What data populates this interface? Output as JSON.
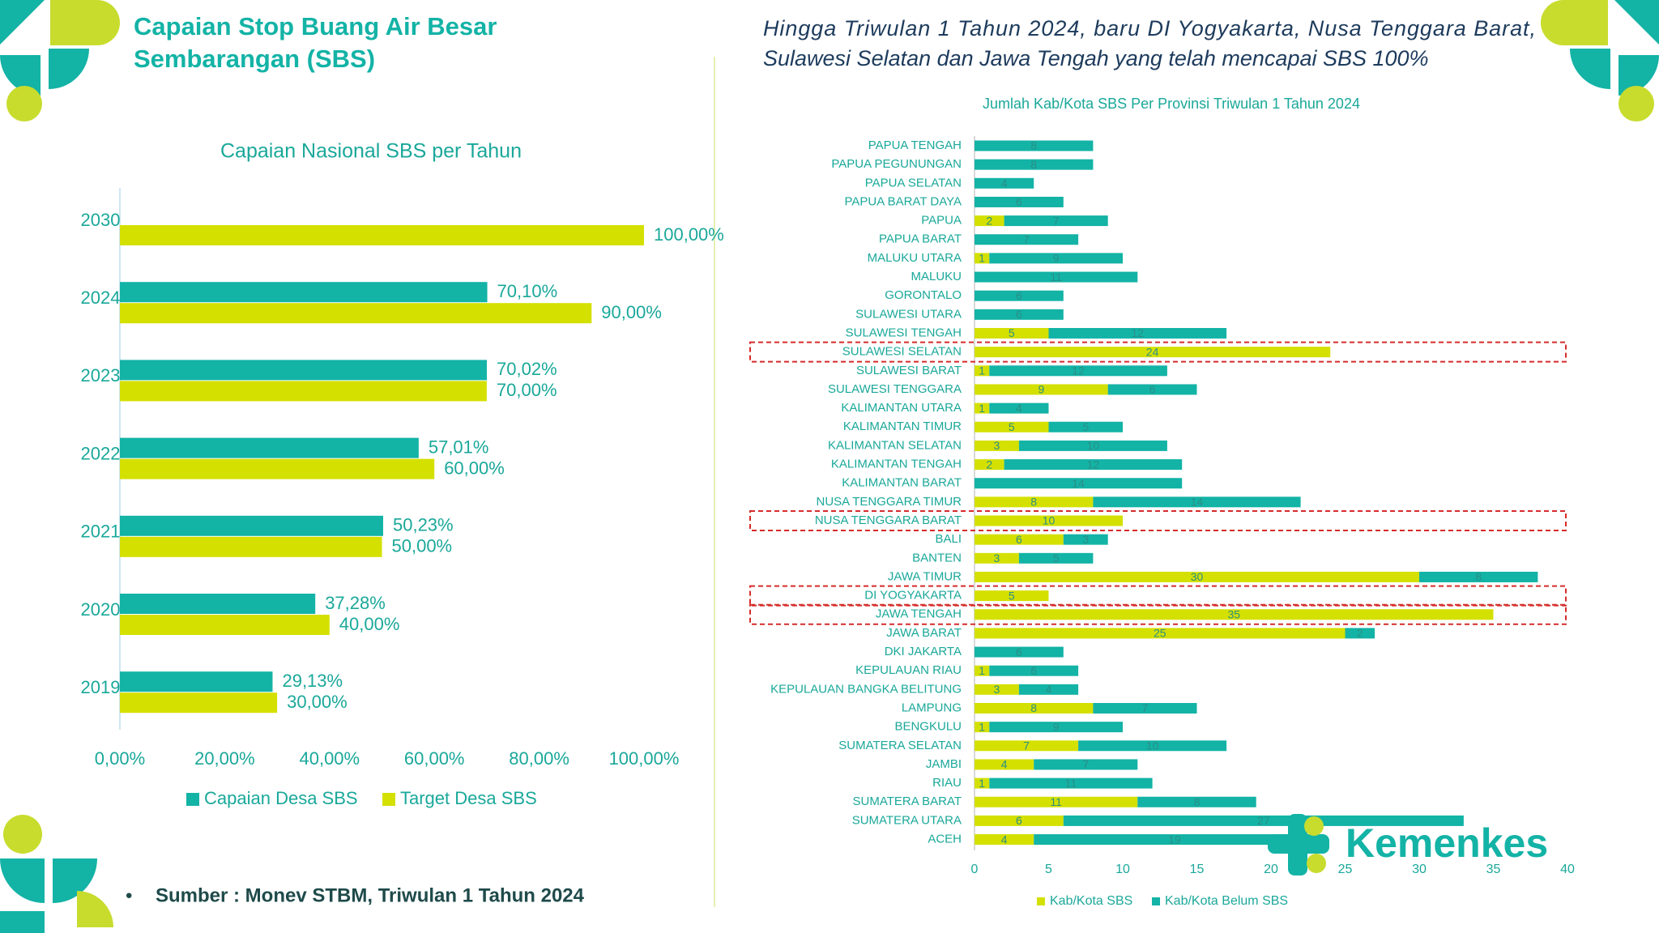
{
  "title_lines": [
    "Capaian Stop Buang Air Besar",
    "Sembarangan (SBS)"
  ],
  "headline_lines": [
    "Hingga Triwulan 1 Tahun 2024, baru DI Yogyakarta, Nusa Tenggara Barat,",
    "Sulawesi Selatan dan Jawa Tengah yang telah mencapai SBS 100%"
  ],
  "source": "Sumber : Monev STBM, Triwulan 1 Tahun 2024",
  "brand": "Kemenkes",
  "chart_data": [
    {
      "type": "bar",
      "orientation": "horizontal",
      "title": "Capaian Nasional SBS per Tahun",
      "categories": [
        "2030",
        "2024",
        "2023",
        "2022",
        "2021",
        "2020",
        "2019"
      ],
      "series": [
        {
          "name": "Capaian Desa SBS",
          "color": "#13b3a6",
          "values": [
            null,
            70.1,
            70.02,
            57.01,
            50.23,
            37.28,
            29.13
          ],
          "value_labels": [
            null,
            "70,10%",
            "70,02%",
            "57,01%",
            "50,23%",
            "37,28%",
            "29,13%"
          ]
        },
        {
          "name": "Target Desa SBS",
          "color": "#d4e000",
          "values": [
            100,
            90,
            70,
            60,
            50,
            40,
            30
          ],
          "value_labels": [
            "100,00%",
            "90,00%",
            "70,00%",
            "60,00%",
            "50,00%",
            "40,00%",
            "30,00%"
          ]
        }
      ],
      "xlim": [
        0,
        100
      ],
      "xticks": [
        {
          "value": 0,
          "label": "0,00%"
        },
        {
          "value": 20,
          "label": "20,00%"
        },
        {
          "value": 40,
          "label": "40,00%"
        },
        {
          "value": 60,
          "label": "60,00%"
        },
        {
          "value": 80,
          "label": "80,00%"
        },
        {
          "value": 100,
          "label": "100,00%"
        }
      ],
      "legend": "bottom"
    },
    {
      "type": "bar",
      "orientation": "horizontal",
      "stacked": true,
      "title": "Jumlah Kab/Kota SBS Per Provinsi Triwulan 1 Tahun 2024",
      "categories": [
        "PAPUA TENGAH",
        "PAPUA PEGUNUNGAN",
        "PAPUA SELATAN",
        "PAPUA BARAT DAYA",
        "PAPUA",
        "PAPUA BARAT",
        "MALUKU UTARA",
        "MALUKU",
        "GORONTALO",
        "SULAWESI UTARA",
        "SULAWESI TENGAH",
        "SULAWESI SELATAN",
        "SULAWESI BARAT",
        "SULAWESI TENGGARA",
        "KALIMANTAN UTARA",
        "KALIMANTAN TIMUR",
        "KALIMANTAN SELATAN",
        "KALIMANTAN TENGAH",
        "KALIMANTAN BARAT",
        "NUSA TENGGARA TIMUR",
        "NUSA TENGGARA BARAT",
        "BALI",
        "BANTEN",
        "JAWA TIMUR",
        "DI YOGYAKARTA",
        "JAWA TENGAH",
        "JAWA BARAT",
        "DKI JAKARTA",
        "KEPULAUAN RIAU",
        "KEPULAUAN BANGKA BELITUNG",
        "LAMPUNG",
        "BENGKULU",
        "SUMATERA SELATAN",
        "JAMBI",
        "RIAU",
        "SUMATERA BARAT",
        "SUMATERA UTARA",
        "ACEH"
      ],
      "series": [
        {
          "name": "Kab/Kota SBS",
          "color": "#d4e000",
          "values": [
            0,
            0,
            0,
            0,
            2,
            0,
            1,
            0,
            0,
            0,
            5,
            24,
            1,
            9,
            1,
            5,
            3,
            2,
            0,
            8,
            10,
            6,
            3,
            30,
            5,
            35,
            25,
            0,
            1,
            3,
            8,
            1,
            7,
            4,
            1,
            11,
            6,
            4
          ]
        },
        {
          "name": "Kab/Kota Belum SBS",
          "color": "#13b3a6",
          "values": [
            8,
            8,
            4,
            6,
            7,
            7,
            9,
            11,
            6,
            6,
            12,
            0,
            12,
            6,
            4,
            5,
            10,
            12,
            14,
            14,
            0,
            3,
            5,
            8,
            0,
            0,
            2,
            6,
            6,
            4,
            7,
            9,
            10,
            7,
            11,
            8,
            27,
            19
          ]
        }
      ],
      "highlight": [
        11,
        20,
        24,
        25
      ],
      "xlim": [
        0,
        40
      ],
      "xticks": [
        0,
        5,
        10,
        15,
        20,
        25,
        30,
        35,
        40
      ],
      "legend": "bottom"
    }
  ]
}
